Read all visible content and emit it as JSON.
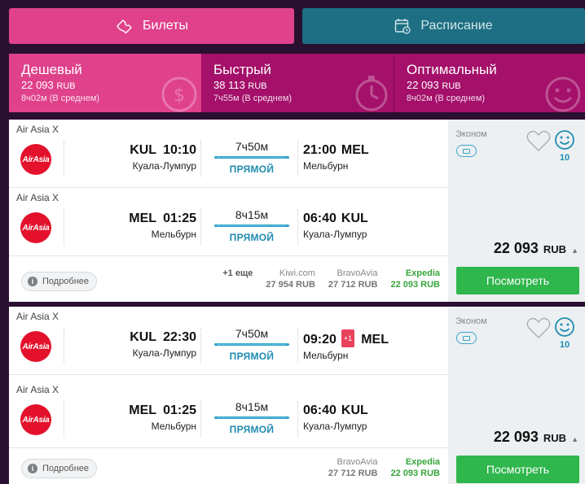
{
  "tabs": {
    "tickets": "Билеты",
    "schedule": "Расписание"
  },
  "sorts": [
    {
      "title": "Дешевый",
      "price": "22 093",
      "currency": "RUB",
      "avg": "8ч02м (В среднем)"
    },
    {
      "title": "Быстрый",
      "price": "38 113",
      "currency": "RUB",
      "avg": "7ч55м (В среднем)"
    },
    {
      "title": "Оптимальный",
      "price": "22 093",
      "currency": "RUB",
      "avg": "8ч02м (В среднем)"
    }
  ],
  "results": [
    {
      "segments": [
        {
          "airline": "Air Asia X",
          "logo_text": "AirAsia",
          "dep_code": "KUL",
          "dep_time": "10:10",
          "dep_city": "Куала-Лумпур",
          "duration": "7ч50м",
          "stops": "ПРЯМОЙ",
          "arr_time": "21:00",
          "arr_code": "MEL",
          "arr_city": "Мельбурн",
          "day_shift": ""
        },
        {
          "airline": "Air Asia X",
          "logo_text": "AirAsia",
          "dep_code": "MEL",
          "dep_time": "01:25",
          "dep_city": "Мельбурн",
          "duration": "8ч15м",
          "stops": "ПРЯМОЙ",
          "arr_time": "06:40",
          "arr_code": "KUL",
          "arr_city": "Куала-Лумпур",
          "day_shift": ""
        }
      ],
      "details_label": "Подробнее",
      "more_agents": "+1 еще",
      "agents": [
        {
          "name": "Kiwi.com",
          "price": "27 954 RUB"
        },
        {
          "name": "BravoAvia",
          "price": "27 712 RUB"
        },
        {
          "name": "Expedia",
          "price": "22 093 RUB"
        }
      ],
      "class": "Эконом",
      "rating": "10",
      "price": "22 093",
      "currency": "RUB",
      "view_label": "Посмотреть"
    },
    {
      "segments": [
        {
          "airline": "Air Asia X",
          "logo_text": "AirAsia",
          "dep_code": "KUL",
          "dep_time": "22:30",
          "dep_city": "Куала-Лумпур",
          "duration": "7ч50м",
          "stops": "ПРЯМОЙ",
          "arr_time": "09:20",
          "arr_code": "MEL",
          "arr_city": "Мельбурн",
          "day_shift": "+1"
        },
        {
          "airline": "Air Asia X",
          "logo_text": "AirAsia",
          "dep_code": "MEL",
          "dep_time": "01:25",
          "dep_city": "Мельбурн",
          "duration": "8ч15м",
          "stops": "ПРЯМОЙ",
          "arr_time": "06:40",
          "arr_code": "KUL",
          "arr_city": "Куала-Лумпур",
          "day_shift": ""
        }
      ],
      "details_label": "Подробнее",
      "agents": [
        {
          "name": "BravoAvia",
          "price": "27 712 RUB"
        },
        {
          "name": "Expedia",
          "price": "22 093 RUB"
        }
      ],
      "class": "Эконом",
      "rating": "10",
      "price": "22 093",
      "currency": "RUB",
      "view_label": "Посмотреть"
    }
  ],
  "colors": {
    "accent_pink": "#e0418b",
    "dark_magenta": "#a4106a",
    "teal": "#1e6f83",
    "green": "#2fb64d",
    "blue": "#1f8bb0"
  }
}
